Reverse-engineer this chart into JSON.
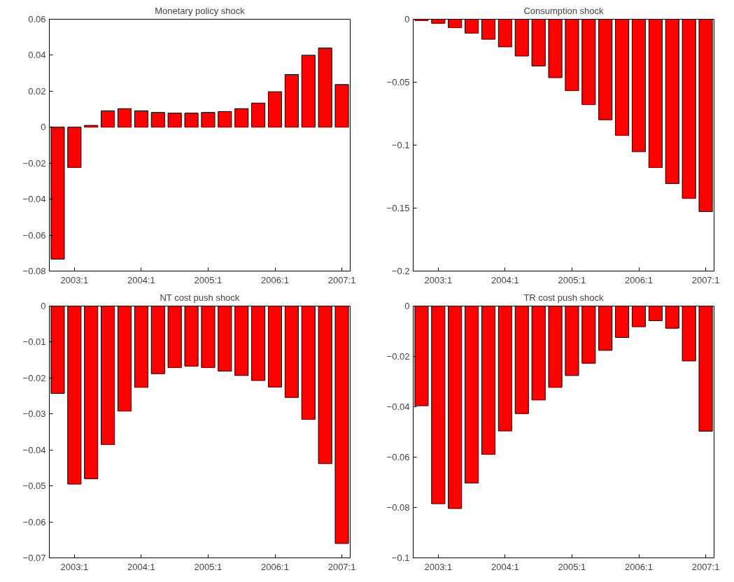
{
  "chart_data": [
    {
      "type": "bar",
      "title": "Monetary policy shock",
      "color": "#ff0000",
      "categories": [
        null,
        "2003:1",
        null,
        null,
        null,
        "2004:1",
        null,
        null,
        null,
        "2005:1",
        null,
        null,
        null,
        "2006:1",
        null,
        null,
        null,
        "2007:1"
      ],
      "values": [
        -0.0734,
        -0.0224,
        0.001,
        0.0091,
        0.0103,
        0.0091,
        0.0082,
        0.0078,
        0.0078,
        0.0082,
        0.0087,
        0.0103,
        0.0134,
        0.0197,
        0.0293,
        0.04,
        0.044,
        0.0237
      ],
      "ylim": [
        -0.08,
        0.06
      ],
      "yticks": [
        {
          "value": -0.08,
          "label": "−0.08"
        },
        {
          "value": -0.06,
          "label": "−0.06"
        },
        {
          "value": -0.04,
          "label": "−0.04"
        },
        {
          "value": -0.02,
          "label": "−0.02"
        },
        0,
        0.02,
        0.04,
        0.06
      ]
    },
    {
      "type": "bar",
      "title": "Consumption shock",
      "color": "#ff0000",
      "categories": [
        null,
        "2003:1",
        null,
        null,
        null,
        "2004:1",
        null,
        null,
        null,
        "2005:1",
        null,
        null,
        null,
        "2006:1",
        null,
        null,
        null,
        "2007:1"
      ],
      "values": [
        -0.001,
        -0.0032,
        -0.0067,
        -0.011,
        -0.0159,
        -0.0219,
        -0.0292,
        -0.0371,
        -0.0464,
        -0.0567,
        -0.0678,
        -0.0798,
        -0.0923,
        -0.1052,
        -0.1178,
        -0.1305,
        -0.1423,
        -0.1528
      ],
      "ylim": [
        -0.2,
        0
      ],
      "yticks": [
        {
          "value": -0.2,
          "label": "−0.2"
        },
        {
          "value": -0.15,
          "label": "−0.15"
        },
        {
          "value": -0.1,
          "label": "−0.1"
        },
        {
          "value": -0.05,
          "label": "−0.05"
        },
        0
      ]
    },
    {
      "type": "bar",
      "title": "NT cost push shock",
      "color": "#ff0000",
      "categories": [
        null,
        "2003:1",
        null,
        null,
        null,
        "2004:1",
        null,
        null,
        null,
        "2005:1",
        null,
        null,
        null,
        "2006:1",
        null,
        null,
        null,
        "2007:1"
      ],
      "values": [
        -0.0243,
        -0.0495,
        -0.048,
        -0.0385,
        -0.0292,
        -0.0226,
        -0.0188,
        -0.0171,
        -0.0167,
        -0.0171,
        -0.0181,
        -0.0193,
        -0.0207,
        -0.0225,
        -0.0254,
        -0.0315,
        -0.0438,
        -0.066
      ],
      "ylim": [
        -0.07,
        0
      ],
      "yticks": [
        {
          "value": -0.07,
          "label": "−0.07"
        },
        {
          "value": -0.06,
          "label": "−0.06"
        },
        {
          "value": -0.05,
          "label": "−0.05"
        },
        {
          "value": -0.04,
          "label": "−0.04"
        },
        {
          "value": -0.03,
          "label": "−0.03"
        },
        {
          "value": -0.02,
          "label": "−0.02"
        },
        {
          "value": -0.01,
          "label": "−0.01"
        },
        0
      ]
    },
    {
      "type": "bar",
      "title": "TR cost push shock",
      "color": "#ff0000",
      "categories": [
        null,
        "2003:1",
        null,
        null,
        null,
        "2004:1",
        null,
        null,
        null,
        "2005:1",
        null,
        null,
        null,
        "2006:1",
        null,
        null,
        null,
        "2007:1"
      ],
      "values": [
        -0.0396,
        -0.0785,
        -0.0804,
        -0.0703,
        -0.0589,
        -0.0496,
        -0.0427,
        -0.0373,
        -0.0323,
        -0.0276,
        -0.0227,
        -0.0176,
        -0.0125,
        -0.0082,
        -0.0058,
        -0.0088,
        -0.0218,
        -0.0497
      ],
      "ylim": [
        -0.1,
        0
      ],
      "yticks": [
        {
          "value": -0.1,
          "label": "−0.1"
        },
        {
          "value": -0.08,
          "label": "−0.08"
        },
        {
          "value": -0.06,
          "label": "−0.06"
        },
        {
          "value": -0.04,
          "label": "−0.04"
        },
        {
          "value": -0.02,
          "label": "−0.02"
        },
        0
      ]
    }
  ]
}
